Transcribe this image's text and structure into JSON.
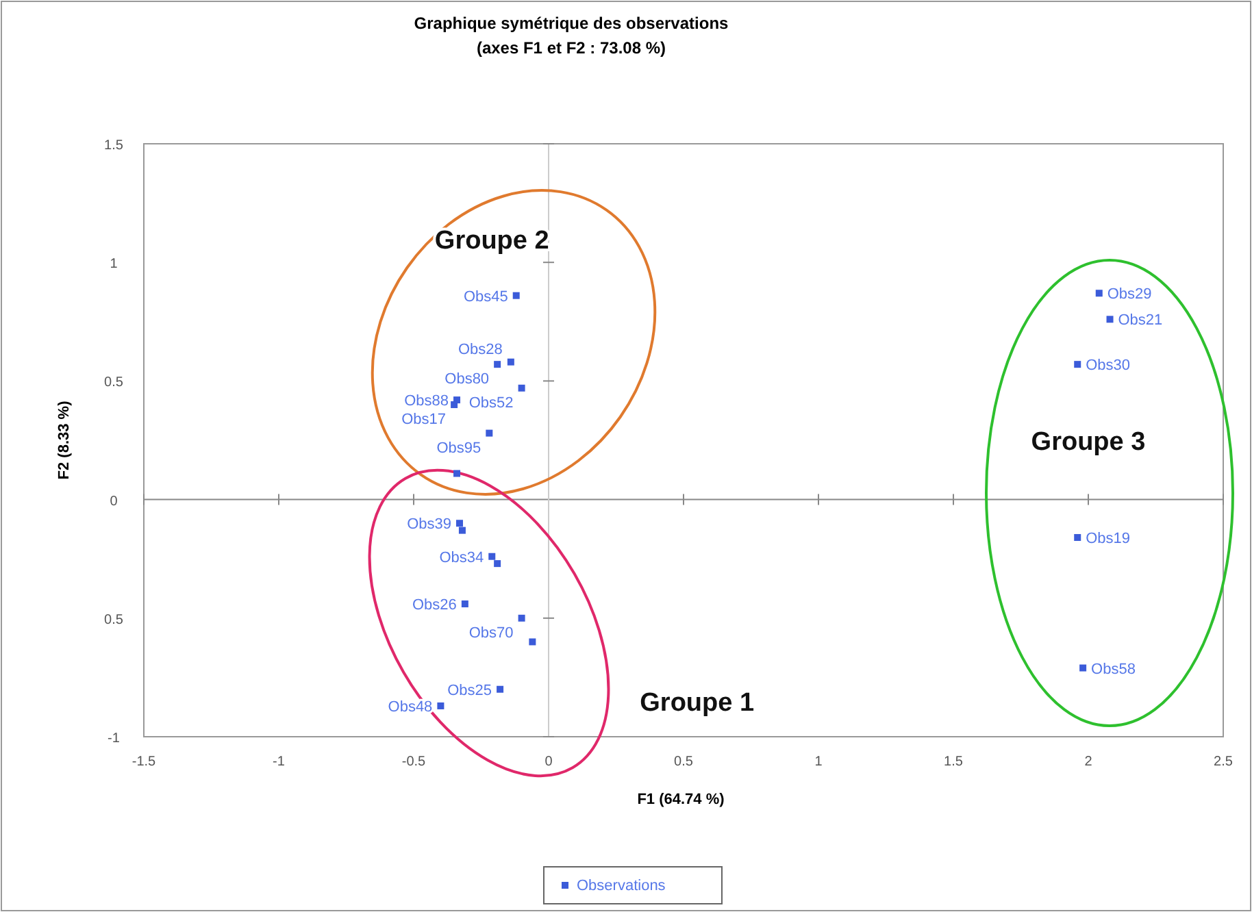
{
  "chart_data": {
    "type": "scatter",
    "title": "Graphique symétrique des observations",
    "subtitle": "(axes F1 et F2 : 73.08 %)",
    "xlabel": "F1 (64.74 %)",
    "ylabel": "F2 (8.33 %)",
    "xlim": [
      -1.5,
      2.5
    ],
    "xticks": [
      -1.5,
      -1,
      -0.5,
      0,
      0.5,
      1,
      1.5,
      2,
      2.5
    ],
    "ylim": [
      -1,
      1.5
    ],
    "yticks": [
      -1,
      {
        "value": -0.5,
        "label": "0.5"
      },
      0,
      0.5,
      1,
      1.5
    ],
    "grid": false,
    "legend": "bottom",
    "marker": "square",
    "series": [
      {
        "name": "Observations",
        "color": "#3b5bd9",
        "x": [
          -0.12,
          -0.14,
          -0.19,
          -0.1,
          -0.34,
          -0.35,
          -0.22,
          -0.34,
          -0.33,
          -0.32,
          -0.21,
          -0.19,
          -0.31,
          -0.1,
          -0.06,
          -0.18,
          -0.4,
          2.04,
          2.08,
          1.96,
          1.96,
          1.98
        ],
        "values": [
          0.86,
          0.58,
          0.57,
          0.47,
          0.42,
          0.4,
          0.28,
          0.11,
          -0.1,
          -0.13,
          -0.24,
          -0.27,
          -0.44,
          -0.5,
          -0.6,
          -0.8,
          -0.87,
          0.87,
          0.76,
          0.57,
          -0.16,
          -0.71
        ],
        "value_labels": [
          "Obs45",
          "Obs28",
          "Obs80",
          "Obs52",
          "Obs88",
          "Obs17",
          "Obs95",
          null,
          "Obs39",
          null,
          "Obs34",
          null,
          "Obs26",
          "Obs70",
          null,
          "Obs25",
          "Obs48",
          "Obs29",
          "Obs21",
          "Obs30",
          "Obs19",
          "Obs58"
        ]
      }
    ],
    "annotations": [
      "Groupe 2",
      "Groupe 3",
      "Groupe 1"
    ]
  }
}
